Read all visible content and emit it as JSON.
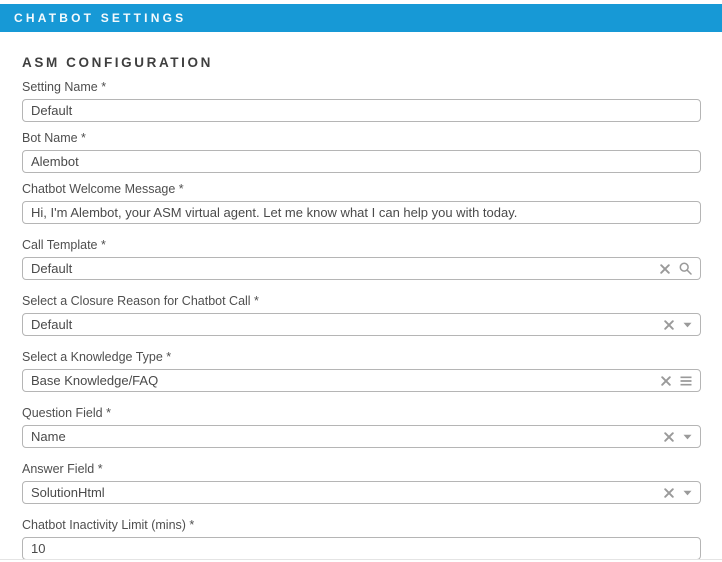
{
  "header": {
    "title": "CHATBOT SETTINGS"
  },
  "section": {
    "title": "ASM CONFIGURATION"
  },
  "form": {
    "fields": [
      {
        "id": "setting-name",
        "label": "Setting Name *",
        "value": "Default",
        "icons": []
      },
      {
        "id": "bot-name",
        "label": "Bot Name *",
        "value": "Alembot",
        "icons": []
      },
      {
        "id": "chatbot-welcome-message",
        "label": "Chatbot Welcome Message *",
        "value": "Hi, I'm Alembot, your ASM virtual agent. Let me know what I can help you with today.",
        "icons": []
      },
      {
        "id": "call-template",
        "label": "Call Template *",
        "value": "Default",
        "icons": [
          "clear-icon",
          "search-icon"
        ]
      },
      {
        "id": "closure-reason",
        "label": "Select a Closure Reason for Chatbot Call *",
        "value": "Default",
        "icons": [
          "clear-icon",
          "caret-down-icon"
        ]
      },
      {
        "id": "knowledge-type",
        "label": "Select a Knowledge Type *",
        "value": "Base Knowledge/FAQ",
        "icons": [
          "clear-icon",
          "list-icon"
        ]
      },
      {
        "id": "question-field",
        "label": "Question Field *",
        "value": "Name",
        "icons": [
          "clear-icon",
          "caret-down-icon"
        ]
      },
      {
        "id": "answer-field",
        "label": "Answer Field *",
        "value": "SolutionHtml",
        "icons": [
          "clear-icon",
          "caret-down-icon"
        ]
      },
      {
        "id": "chatbot-inactivity-limit",
        "label": "Chatbot Inactivity Limit (mins) *",
        "value": "10",
        "icons": []
      }
    ]
  },
  "colors": {
    "header_bg": "#1799d6",
    "header_text": "#f4fafd",
    "section_title_text": "#3f3f3f",
    "label_text": "#4f4f4f",
    "input_text": "#4a4a4a",
    "input_border": "#b5b5b5",
    "icon_gray": "#9a9a9a"
  }
}
